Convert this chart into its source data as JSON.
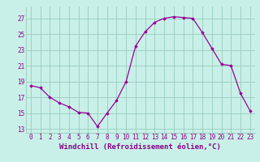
{
  "x": [
    0,
    1,
    2,
    3,
    4,
    5,
    6,
    7,
    8,
    9,
    10,
    11,
    12,
    13,
    14,
    15,
    16,
    17,
    18,
    19,
    20,
    21,
    22,
    23
  ],
  "y": [
    18.5,
    18.2,
    17.0,
    16.3,
    15.8,
    15.1,
    15.0,
    13.3,
    15.0,
    16.6,
    19.0,
    23.5,
    25.3,
    26.5,
    27.0,
    27.2,
    27.1,
    27.0,
    25.2,
    23.2,
    21.2,
    21.0,
    17.5,
    15.3
  ],
  "color": "#990099",
  "bg_color": "#c8f0e8",
  "grid_color": "#99ccbb",
  "xlabel": "Windchill (Refroidissement éolien,°C)",
  "ylabel_ticks": [
    13,
    15,
    17,
    19,
    21,
    23,
    25,
    27
  ],
  "xlim": [
    -0.5,
    23.5
  ],
  "ylim": [
    12.5,
    28.5
  ],
  "label_color": "#880088",
  "tick_color": "#880088",
  "marker": "D",
  "markersize": 1.8,
  "linewidth": 0.9,
  "xlabel_fontsize": 6.5,
  "tick_fontsize": 5.5
}
